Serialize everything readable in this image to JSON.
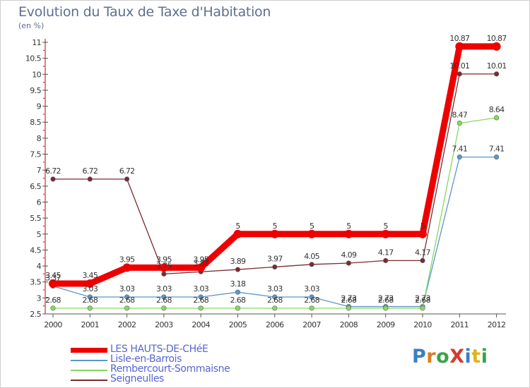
{
  "title": "Evolution du Taux de Taxe d'Habitation",
  "unit": "(en %)",
  "logo": "ProXiti",
  "chart_data": {
    "type": "line",
    "title": "Evolution du Taux de Taxe d'Habitation",
    "ylabel": "(en %)",
    "xlabel": "",
    "x": [
      "2000",
      "2001",
      "2002",
      "2003",
      "2004",
      "2005",
      "2006",
      "2007",
      "2008",
      "2009",
      "2010",
      "2011",
      "2012"
    ],
    "ylim": [
      2.5,
      11
    ],
    "yticks": [
      "2.5",
      "3",
      "3.5",
      "4",
      "4.5",
      "5",
      "5.5",
      "6",
      "6.5",
      "7",
      "7.5",
      "8",
      "8.5",
      "9",
      "9.5",
      "10",
      "10.5",
      "11"
    ],
    "grid": false,
    "legend_position": "bottom-left",
    "series": [
      {
        "name": "LES HAUTS-DE-CHéE",
        "color": "#ee0000",
        "values": [
          3.45,
          3.45,
          3.95,
          3.95,
          3.95,
          5,
          5,
          5,
          5,
          5,
          5,
          10.87,
          10.87
        ],
        "labels": [
          "3.45",
          "3.45",
          "3.95",
          "3.95",
          "3.95",
          "5",
          "5",
          "5",
          "5",
          "5",
          "5",
          "10.87",
          "10.87"
        ]
      },
      {
        "name": "Lisle-en-Barrois",
        "color": "#5b97c9",
        "values": [
          3.37,
          3.03,
          3.03,
          3.03,
          3.03,
          3.18,
          3.03,
          3.03,
          2.73,
          2.73,
          2.73,
          7.41,
          7.41
        ],
        "labels": [
          "3.37",
          "3.03",
          "3.03",
          "3.03",
          "3.03",
          "3.18",
          "3.03",
          "3.03",
          "2.73",
          "2.73",
          "2.73",
          "7.41",
          "7.41"
        ]
      },
      {
        "name": "Rembercourt-Sommaisne",
        "color": "#88d860",
        "values": [
          2.68,
          2.68,
          2.68,
          2.68,
          2.68,
          2.68,
          2.68,
          2.68,
          2.68,
          2.68,
          2.68,
          8.47,
          8.64
        ],
        "labels": [
          "2.68",
          "2.68",
          "2.68",
          "2.68",
          "2.68",
          "2.68",
          "2.68",
          "2.68",
          "2.68",
          "2.68",
          "2.68",
          "8.47",
          "8.64"
        ]
      },
      {
        "name": "Seigneulles",
        "color": "#7a2a30",
        "values": [
          6.72,
          6.72,
          6.72,
          3.75,
          3.82,
          3.89,
          3.97,
          4.05,
          4.09,
          4.17,
          4.17,
          10.01,
          10.01
        ],
        "labels": [
          "6.72",
          "6.72",
          "6.72",
          "3.75",
          "3.82",
          "3.89",
          "3.97",
          "4.05",
          "4.09",
          "4.17",
          "4.17",
          "10.01",
          "10.01"
        ]
      }
    ]
  }
}
